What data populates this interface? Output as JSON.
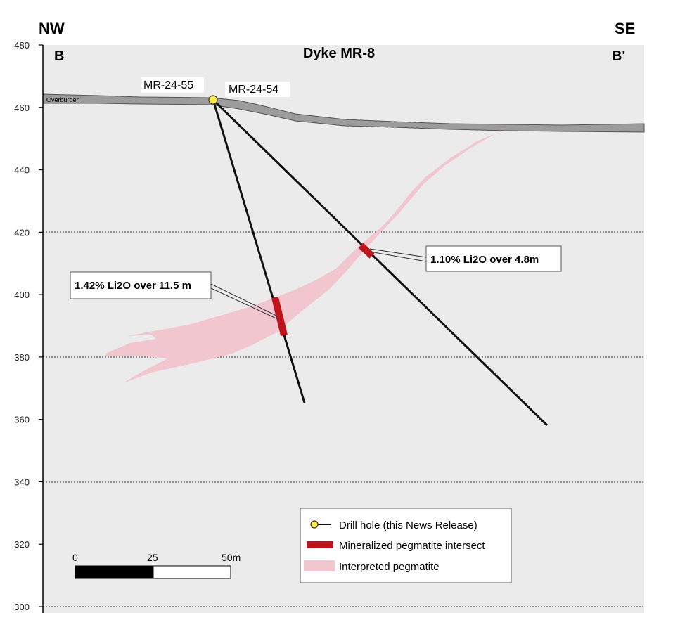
{
  "header": {
    "left_direction": "NW",
    "right_direction": "SE",
    "left_section": "B",
    "right_section": "B'",
    "title": "Dyke MR-8"
  },
  "elevation_axis": {
    "ticks": [
      480,
      460,
      440,
      420,
      400,
      380,
      360,
      340,
      320,
      300
    ],
    "gridlines_at": [
      420,
      380,
      340,
      300
    ]
  },
  "overburden_label": "Overburden",
  "drill_holes": [
    {
      "name": "MR-24-55"
    },
    {
      "name": "MR-24-54"
    }
  ],
  "intercepts": [
    {
      "label": "1.42% Li2O over 11.5 m",
      "hole": "MR-24-55"
    },
    {
      "label": "1.10% Li2O over 4.8m",
      "hole": "MR-24-54"
    }
  ],
  "legend": {
    "items": [
      {
        "label": "Drill hole (this News Release)",
        "symbol": "drill-hole"
      },
      {
        "label": "Mineralized pegmatite intersect",
        "symbol": "intersect"
      },
      {
        "label": "Interpreted pegmatite",
        "symbol": "pegmatite"
      }
    ]
  },
  "scale_bar": {
    "labels": [
      "0",
      "25",
      "50m"
    ]
  },
  "colors": {
    "section_background": "#ebebeb",
    "overburden": "#9c9c9c",
    "pegmatite": "#f2c6cf",
    "intersect": "#c0141c",
    "drill_hole_collar": "#ffec3d"
  }
}
